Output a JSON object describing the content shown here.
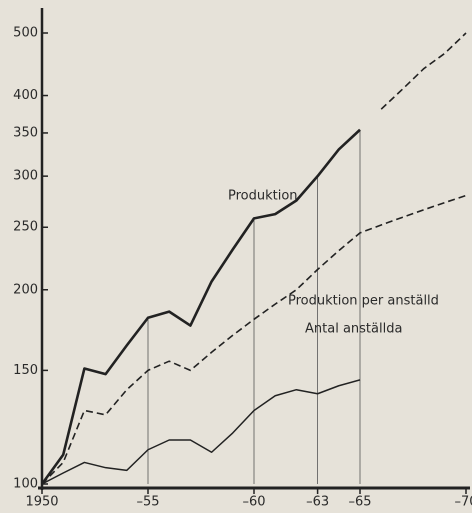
{
  "chart_data": {
    "type": "line",
    "x": [
      1950,
      1951,
      1952,
      1953,
      1954,
      1955,
      1956,
      1957,
      1958,
      1959,
      1960,
      1961,
      1962,
      1963,
      1964,
      1965,
      1966,
      1967,
      1968,
      1969,
      1970
    ],
    "series": [
      {
        "name": "Produktion",
        "color": "#222222",
        "line_style": "thick",
        "values": [
          100,
          111,
          151,
          148,
          164,
          181,
          185,
          176,
          206,
          231,
          258,
          262,
          275,
          300,
          330,
          354,
          381,
          409,
          440,
          465,
          500
        ]
      },
      {
        "name": "Produktion per anställd",
        "color": "#222222",
        "line_style": "dashed",
        "values": [
          100,
          108,
          130,
          128,
          140,
          150,
          155,
          150,
          160,
          170,
          180,
          190,
          200,
          215,
          230,
          245,
          252,
          259,
          266,
          273,
          280
        ]
      },
      {
        "name": "Antal anställda",
        "color": "#222222",
        "line_style": "thin",
        "values": [
          100,
          104,
          108,
          106,
          105,
          113,
          117,
          117,
          112,
          120,
          130,
          137,
          140,
          138,
          142,
          145,
          null,
          null,
          null,
          null,
          null
        ]
      }
    ],
    "forecast_from": 1965,
    "log_y": true,
    "xlim": [
      1950,
      1970
    ],
    "xticks": [
      1950,
      {
        "value": 1955,
        "label": "–55"
      },
      {
        "value": 1960,
        "label": "–60"
      },
      {
        "value": 1963,
        "label": "–63"
      },
      {
        "value": 1965,
        "label": "–65"
      },
      {
        "value": 1970,
        "label": "–70"
      }
    ],
    "ylim": [
      100,
      500
    ],
    "yticks": [
      100,
      150,
      200,
      250,
      300,
      350,
      400,
      500
    ]
  }
}
